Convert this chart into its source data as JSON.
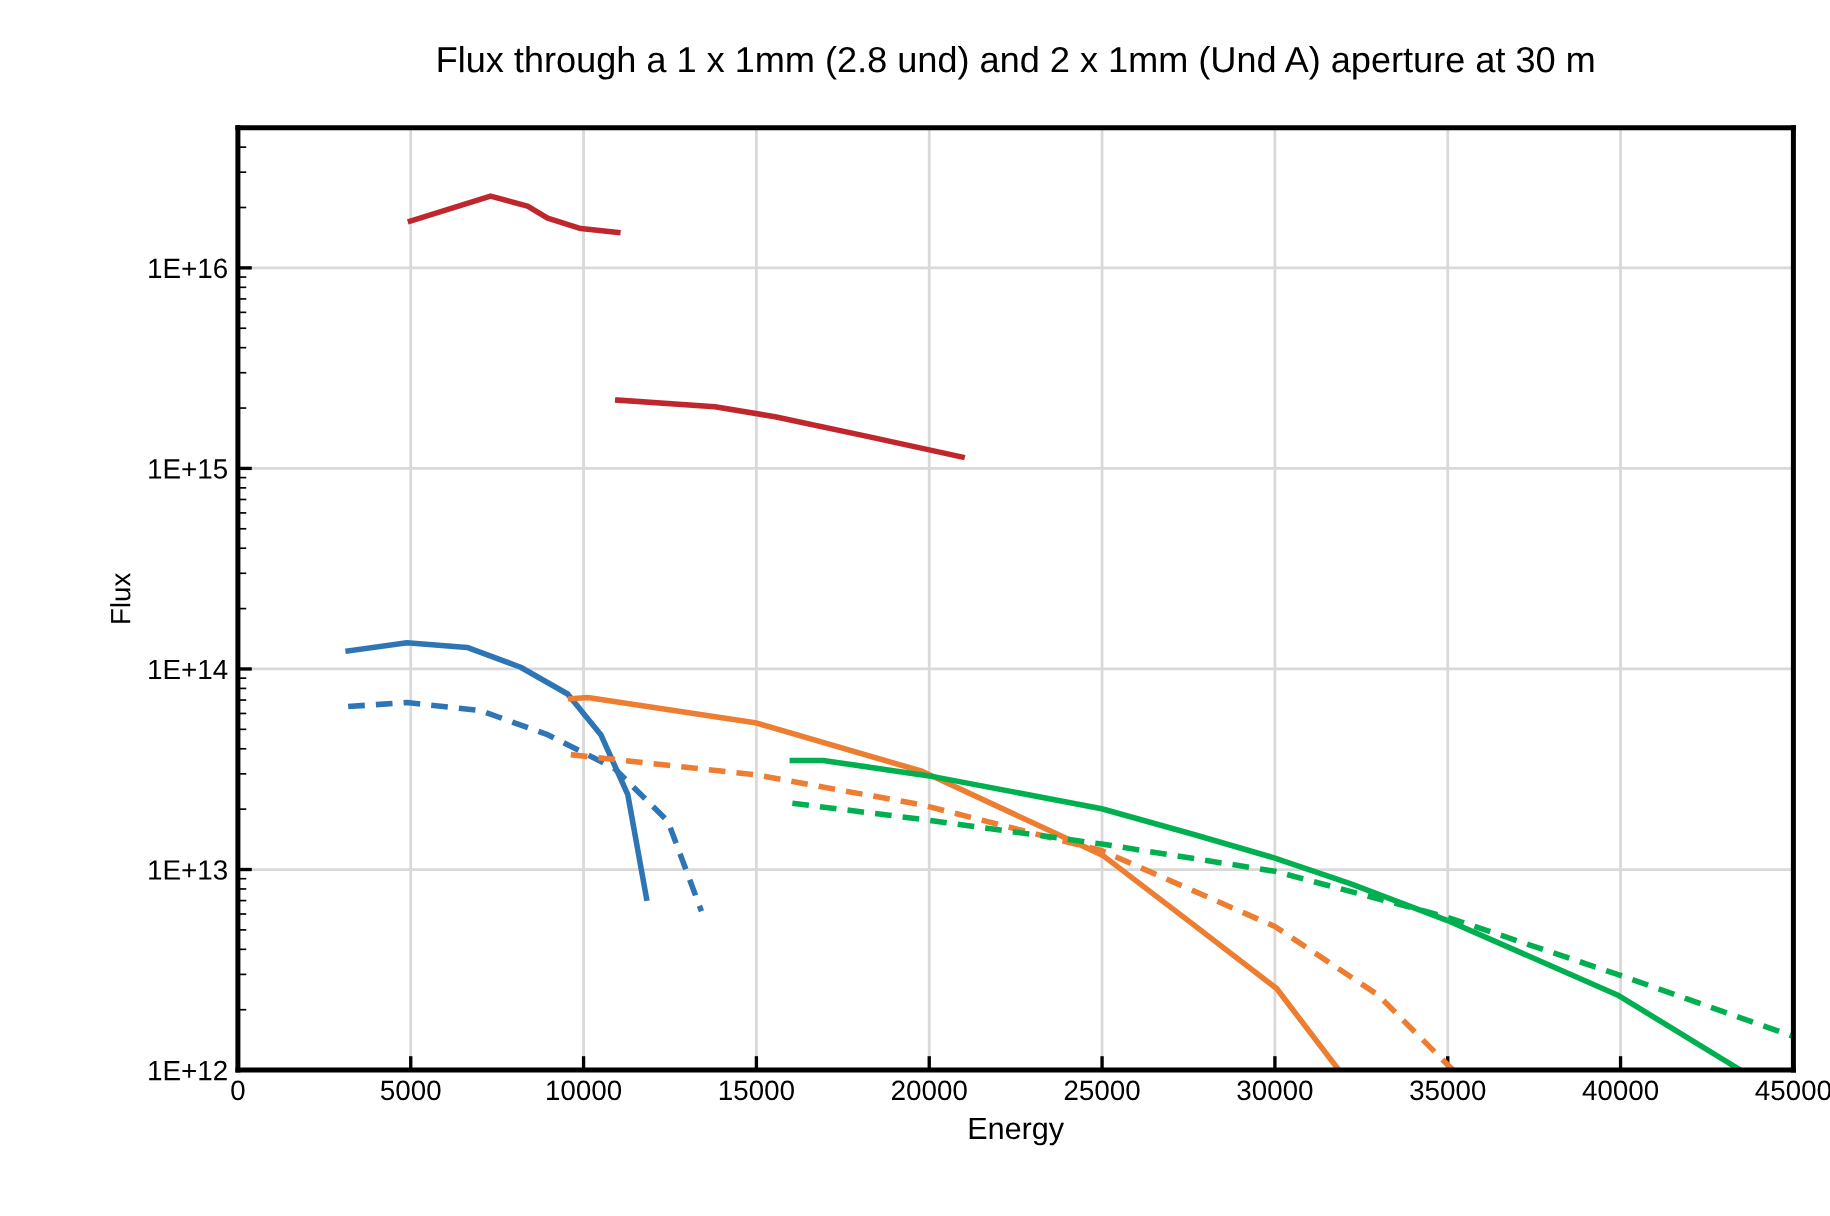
{
  "chart_data": {
    "type": "line",
    "title": "Flux through a 1 x 1mm (2.8 und) and 2 x 1mm (Und A) aperture at 30 m",
    "xlabel": "Energy",
    "ylabel": "Flux",
    "log": "y",
    "grid": true,
    "xlim": [
      0,
      45000
    ],
    "xticks": [
      0,
      5000,
      10000,
      15000,
      20000,
      25000,
      30000,
      35000,
      40000,
      45000
    ],
    "ylim": [
      1000000000000.0,
      5e+16
    ],
    "yticks": [
      {
        "value": 1000000000000.0,
        "label": "1E+12"
      },
      {
        "value": 10000000000000.0,
        "label": "1E+13"
      },
      {
        "value": 100000000000000.0,
        "label": "1E+14"
      },
      {
        "value": 1000000000000000.0,
        "label": "1E+15"
      },
      {
        "value": 1e+16,
        "label": "1E+16"
      }
    ],
    "series": [
      {
        "color": "#c0272d",
        "line_style": "solid",
        "x": [
          4990,
          7310,
          8380,
          8960,
          9920,
          10990
        ],
        "values": [
          1.71e+16,
          2.28e+16,
          2.03e+16,
          1.77e+16,
          1.57e+16,
          1.5e+16
        ]
      },
      {
        "color": "#c0272d",
        "line_style": "solid",
        "x": [
          10990,
          13800,
          15540,
          18240,
          20950
        ],
        "values": [
          2190000000000000.0,
          2030000000000000.0,
          1810000000000000.0,
          1440000000000000.0,
          1140000000000000.0
        ]
      },
      {
        "color": "#2e75b6",
        "line_style": "solid",
        "x": [
          3190,
          4890,
          6630,
          8180,
          9540,
          10500,
          11280,
          11820
        ],
        "values": [
          123000000000000.0,
          135000000000000.0,
          128000000000000.0,
          102000000000000.0,
          75000000000000.0,
          47000000000000.0,
          23600000000000.0,
          7200000000000.0
        ]
      },
      {
        "color": "#2e75b6",
        "line_style": "dashed",
        "x": [
          3190,
          4890,
          7020,
          8960,
          10890,
          12440,
          13410
        ],
        "values": [
          65000000000000.0,
          68000000000000.0,
          62000000000000.0,
          47000000000000.0,
          32000000000000.0,
          17400000000000.0,
          6200000000000.0
        ]
      },
      {
        "color": "#ed7d31",
        "line_style": "solid",
        "x": [
          9630,
          10120,
          14960,
          19790,
          25010,
          27530,
          30050,
          31850
        ],
        "values": [
          71000000000000.0,
          72000000000000.0,
          54000000000000.0,
          30900000000000.0,
          11800000000000.0,
          5500000000000.0,
          2550000000000.0,
          1000000000000.0
        ]
      },
      {
        "color": "#ed7d31",
        "line_style": "dashed",
        "x": [
          9630,
          14960,
          19790,
          25000,
          30000,
          32980,
          35150
        ],
        "values": [
          37400000000000.0,
          29700000000000.0,
          21000000000000.0,
          12400000000000.0,
          5200000000000.0,
          2370000000000.0,
          1000000000000.0
        ]
      },
      {
        "color": "#00b050",
        "line_style": "solid",
        "x": [
          16040,
          16930,
          20000,
          24990,
          27630,
          30000,
          32180,
          34960,
          39910,
          43470
        ],
        "values": [
          35000000000000.0,
          35000000000000.0,
          29300000000000.0,
          20100000000000.0,
          15000000000000.0,
          11400000000000.0,
          8500000000000.0,
          5600000000000.0,
          2370000000000.0,
          1000000000000.0
        ]
      },
      {
        "color": "#00b050",
        "line_style": "dashed",
        "x": [
          16040,
          20000,
          24990,
          30000,
          34960,
          39910,
          44960
        ],
        "values": [
          21400000000000.0,
          17600000000000.0,
          13400000000000.0,
          9800000000000.0,
          5800000000000.0,
          3000000000000.0,
          1480000000000.0
        ]
      }
    ]
  }
}
